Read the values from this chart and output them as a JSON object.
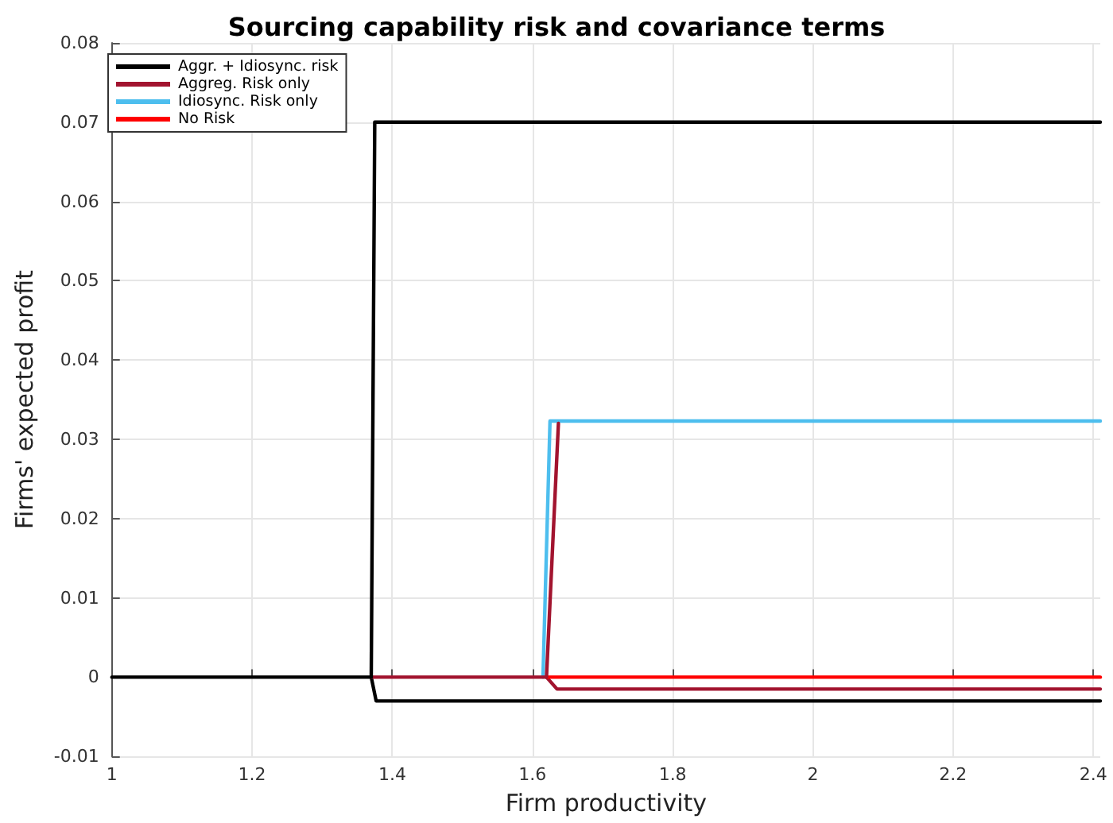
{
  "chart_data": {
    "type": "line",
    "title": "Sourcing capability risk and covariance terms",
    "xlabel": "Firm productivity",
    "ylabel": "Firms' expected profit",
    "xlim": [
      1,
      2.41
    ],
    "xticks": [
      1,
      1.2,
      1.4,
      1.6,
      1.8,
      2,
      2.2,
      2.4
    ],
    "ylim": [
      -0.01,
      0.08
    ],
    "yticks": [
      -0.01,
      0,
      0.01,
      0.02,
      0.03,
      0.04,
      0.05,
      0.06,
      0.07,
      0.08
    ],
    "grid": true,
    "legend": "top left",
    "marker": "none",
    "line_style": "solid",
    "series": [
      {
        "name": "Aggr. + Idiosync. risk",
        "color": "#000000",
        "x": [
          1,
          1.37,
          1.375,
          2.41
        ],
        "values": [
          0,
          0,
          0.07,
          0.07
        ]
      },
      {
        "name": "Aggreg. Risk only",
        "color": "#a2142f",
        "x": [
          1.37,
          1.62,
          1.637
        ],
        "values": [
          0,
          0,
          0.032
        ]
      },
      {
        "name": "Idiosync. Risk only",
        "color": "#4dbeee",
        "x": [
          1.615,
          1.625,
          2.41
        ],
        "values": [
          0,
          0.0323,
          0.0323
        ]
      },
      {
        "name": "No Risk",
        "color": "#ff0000",
        "x": [
          1.62,
          2.41
        ],
        "values": [
          0,
          0
        ]
      },
      {
        "color": "#a2142f",
        "x": [
          1.62,
          1.635,
          2.41
        ],
        "values": [
          0,
          -0.0015,
          -0.0015
        ]
      },
      {
        "color": "#000000",
        "x": [
          1.37,
          1.377,
          2.41
        ],
        "values": [
          0,
          -0.003,
          -0.003
        ]
      }
    ]
  }
}
